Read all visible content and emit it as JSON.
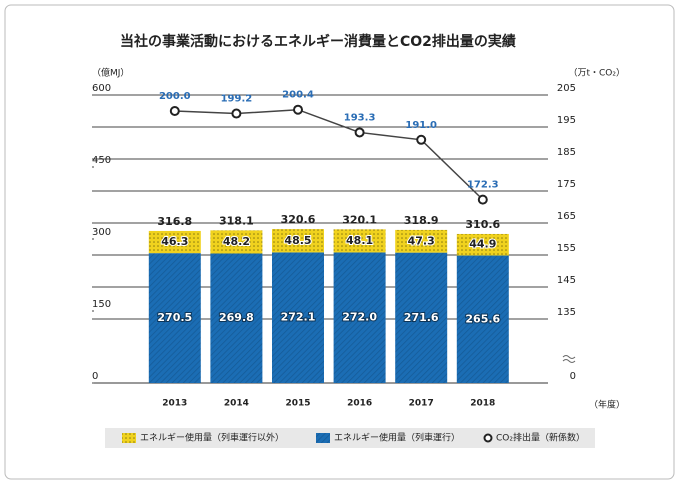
{
  "chart_data": {
    "type": "bar_line",
    "title": "当社の事業活動におけるエネルギー消費量とCO2排出量の実績",
    "y_label": "（億MJ）",
    "y2_label": "（万t・CO₂）",
    "x_label": "（年度）",
    "categories": [
      "2013",
      "2014",
      "2015",
      "2016",
      "2017",
      "2018"
    ],
    "series": [
      {
        "name": "エネルギー使用量（列車運行）",
        "color": "#1b6db4",
        "values": [
          270.5,
          269.8,
          272.1,
          272.0,
          271.6,
          265.6
        ],
        "value_labels": [
          "270.5",
          "269.8",
          "272.1",
          "272.0",
          "271.6",
          "265.6"
        ]
      },
      {
        "name": "エネルギー使用量（列車運行以外）",
        "color": "#f0d21e",
        "values": [
          46.3,
          48.2,
          48.5,
          48.1,
          47.3,
          44.9
        ],
        "value_labels": [
          "46.3",
          "48.2",
          "48.5",
          "48.1",
          "47.3",
          "44.9"
        ]
      },
      {
        "name": "CO₂排出量（新係数）",
        "color": "#444444",
        "axis": "y2",
        "values": [
          200.0,
          199.2,
          200.4,
          193.3,
          191.0,
          172.3
        ],
        "value_labels": [
          "200.0",
          "199.2",
          "200.4",
          "193.3",
          "191.0",
          "172.3"
        ]
      }
    ],
    "totals": [
      316.8,
      318.1,
      320.6,
      320.1,
      318.9,
      310.6
    ],
    "ylim": [
      0,
      600
    ],
    "yticks": [
      0,
      150,
      300,
      450,
      600
    ],
    "y2lim": [
      125,
      205
    ],
    "y2ticks": [
      0,
      135,
      145,
      155,
      165,
      175,
      185,
      195,
      205
    ],
    "y2_break": true
  }
}
